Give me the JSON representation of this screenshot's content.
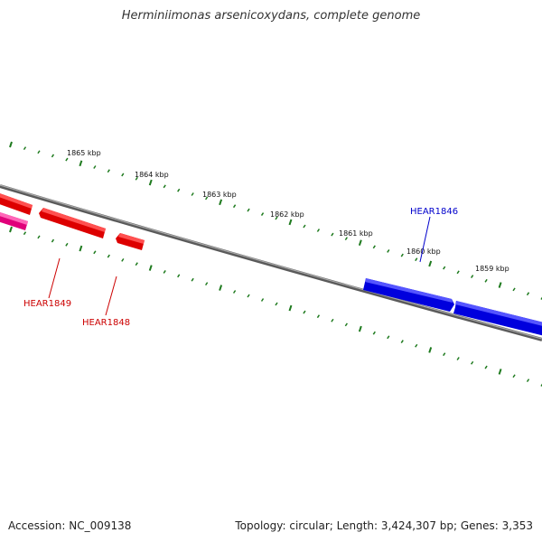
{
  "title": "Herminiimonas arsenicoxydans, complete genome",
  "footer": {
    "accession": "Accession: NC_009138",
    "summary": "Topology: circular; Length: 3,424,307 bp; Genes: 3,353"
  },
  "colors": {
    "backbone": "#7a7a7a",
    "tick": "#1e7a1e",
    "gene_red": "#ee0000",
    "gene_blue": "#0000ee",
    "gene_pink": "#ee1188"
  },
  "scale_labels": [
    "1865 kbp",
    "1864 kbp",
    "1863 kbp",
    "1862 kbp",
    "1861 kbp",
    "1860 kbp",
    "1859 kbp"
  ],
  "gene_labels": [
    {
      "name": "HEAR1846",
      "color": "#0000cc"
    },
    {
      "name": "HEAR1849",
      "color": "#cc0000"
    },
    {
      "name": "HEAR1848",
      "color": "#cc0000"
    }
  ]
}
